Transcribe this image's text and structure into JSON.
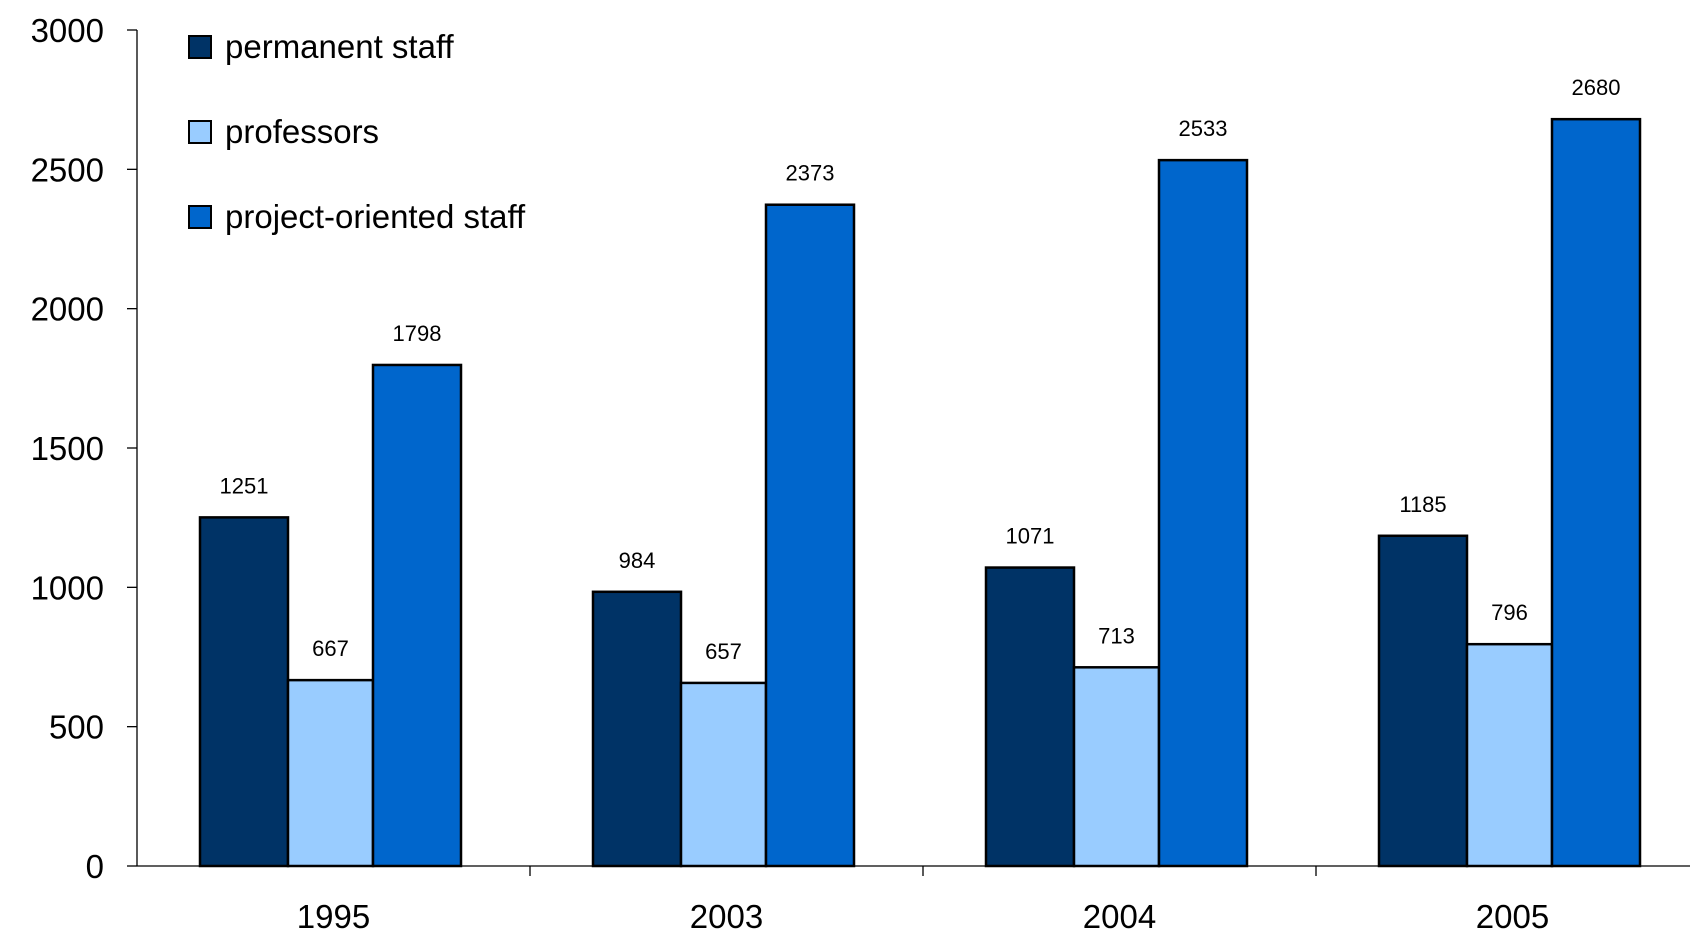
{
  "chart_data": {
    "type": "bar",
    "title": "",
    "xlabel": "",
    "ylabel": "",
    "categories": [
      "1995",
      "2003",
      "2004",
      "2005"
    ],
    "series": [
      {
        "name": "permanent staff",
        "color": "#003366",
        "values": [
          1251,
          984,
          1071,
          1185
        ]
      },
      {
        "name": "professors",
        "color": "#99CCFF",
        "values": [
          667,
          657,
          713,
          796
        ]
      },
      {
        "name": "project-oriented staff",
        "color": "#0066CC",
        "values": [
          1798,
          2373,
          2533,
          2680
        ]
      }
    ],
    "ylim": [
      0,
      3000
    ],
    "yticks": [
      0,
      500,
      1000,
      1500,
      2000,
      2500,
      3000
    ],
    "data_labels": true,
    "grid": false,
    "legend_position": "top-left"
  }
}
